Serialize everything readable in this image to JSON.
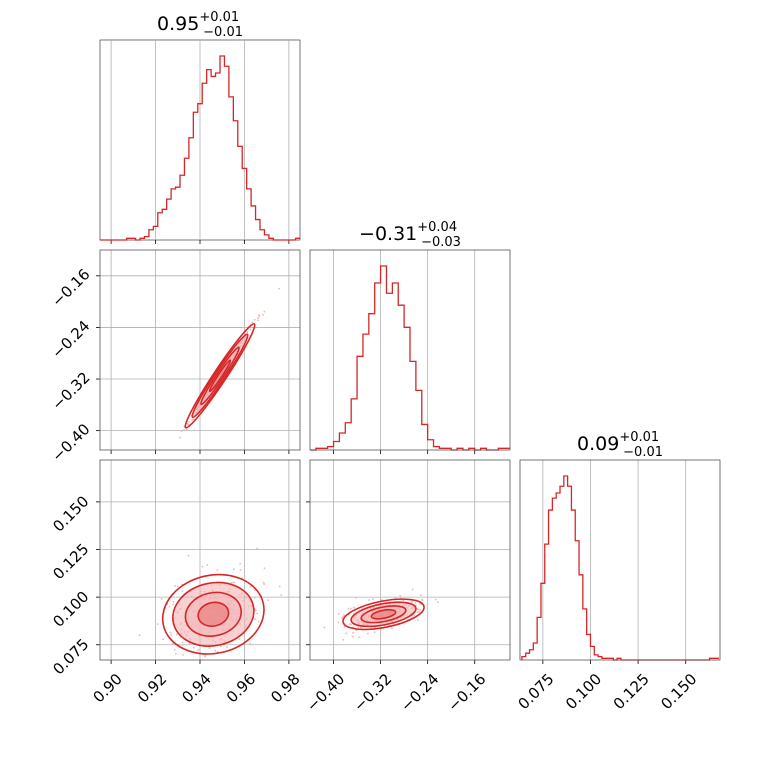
{
  "figure": {
    "color": "#d62728",
    "fill_light": "#f4b4b5",
    "fill_dark": "#e87474"
  },
  "titles": [
    {
      "value": "0.95",
      "plus": "+0.01",
      "minus": "−0.01"
    },
    {
      "value": "−0.31",
      "plus": "+0.04",
      "minus": "−0.03"
    },
    {
      "value": "0.09",
      "plus": "+0.01",
      "minus": "−0.01"
    }
  ],
  "chart_data": [
    {
      "type": "histogram",
      "panel": "param-1-marginal",
      "xlim": [
        0.895,
        0.985
      ],
      "bins": [
        0.896,
        0.898,
        0.9,
        0.902,
        0.904,
        0.906,
        0.908,
        0.91,
        0.912,
        0.914,
        0.916,
        0.918,
        0.92,
        0.922,
        0.924,
        0.926,
        0.928,
        0.93,
        0.932,
        0.934,
        0.936,
        0.938,
        0.94,
        0.942,
        0.944,
        0.946,
        0.948,
        0.95,
        0.952,
        0.954,
        0.956,
        0.958,
        0.96,
        0.962,
        0.964,
        0.966,
        0.968,
        0.97,
        0.972,
        0.974,
        0.976,
        0.978,
        0.98,
        0.982,
        0.984
      ],
      "counts": [
        0,
        0,
        0,
        0,
        0,
        0,
        1,
        1,
        0,
        1,
        2,
        6,
        8,
        16,
        18,
        24,
        30,
        31,
        38,
        48,
        60,
        75,
        80,
        92,
        100,
        96,
        98,
        108,
        102,
        84,
        70,
        55,
        42,
        30,
        20,
        12,
        6,
        3,
        1,
        0,
        0,
        0,
        0,
        0,
        1
      ]
    },
    {
      "type": "histogram",
      "panel": "param-2-marginal",
      "xlim": [
        -0.44,
        -0.1
      ],
      "bins": [
        -0.435,
        -0.425,
        -0.415,
        -0.405,
        -0.395,
        -0.385,
        -0.375,
        -0.365,
        -0.355,
        -0.345,
        -0.335,
        -0.325,
        -0.315,
        -0.305,
        -0.295,
        -0.285,
        -0.275,
        -0.265,
        -0.255,
        -0.245,
        -0.235,
        -0.225,
        -0.215,
        -0.205,
        -0.195,
        -0.185,
        -0.175,
        -0.165,
        -0.155,
        -0.145,
        -0.135,
        -0.125,
        -0.115,
        -0.105
      ],
      "counts": [
        0,
        1,
        1,
        2,
        5,
        10,
        16,
        30,
        55,
        68,
        80,
        98,
        108,
        92,
        98,
        85,
        72,
        52,
        35,
        15,
        6,
        2,
        1,
        1,
        0,
        1,
        0,
        1,
        0,
        1,
        0,
        0,
        1,
        1
      ]
    },
    {
      "type": "histogram",
      "panel": "param-3-marginal",
      "xlim": [
        0.063,
        0.168
      ],
      "bins": [
        0.065,
        0.067,
        0.069,
        0.071,
        0.073,
        0.075,
        0.077,
        0.079,
        0.081,
        0.083,
        0.085,
        0.087,
        0.089,
        0.091,
        0.093,
        0.095,
        0.097,
        0.099,
        0.101,
        0.103,
        0.105,
        0.107,
        0.109,
        0.111,
        0.113,
        0.115,
        0.117,
        0.119,
        0.121,
        0.123,
        0.125,
        0.13,
        0.135,
        0.14,
        0.145,
        0.15,
        0.155,
        0.16,
        0.165
      ],
      "counts": [
        2,
        4,
        6,
        10,
        25,
        45,
        68,
        88,
        95,
        98,
        102,
        108,
        102,
        88,
        70,
        50,
        30,
        15,
        8,
        3,
        2,
        1,
        1,
        1,
        0,
        1,
        0,
        0,
        0,
        0,
        0,
        0,
        0,
        0,
        0,
        0,
        0,
        0,
        1
      ]
    },
    {
      "type": "contour",
      "panel": "param-1-vs-param-2",
      "xlim": [
        0.895,
        0.985
      ],
      "ylim": [
        -0.43,
        -0.12
      ],
      "center": [
        0.949,
        -0.315
      ],
      "slope": 5.2,
      "sigma_major": 0.014,
      "sigma_minor": 0.002,
      "levels_sigma": [
        0.6,
        1.1,
        1.6,
        2.0
      ]
    },
    {
      "type": "contour",
      "panel": "param-1-vs-param-3",
      "xlim": [
        0.895,
        0.985
      ],
      "ylim": [
        0.067,
        0.172
      ],
      "center": [
        0.946,
        0.091
      ],
      "slope": 0.25,
      "sigma_major": 0.0115,
      "sigma_minor": 0.0055,
      "levels_sigma": [
        0.6,
        1.1,
        1.6,
        2.0
      ]
    },
    {
      "type": "contour",
      "panel": "param-2-vs-param-3",
      "xlim": [
        -0.44,
        -0.1
      ],
      "ylim": [
        0.067,
        0.172
      ],
      "center": [
        -0.315,
        0.091
      ],
      "slope": 0.06,
      "sigma_major": 0.035,
      "sigma_minor": 0.007,
      "levels_sigma": [
        0.6,
        1.1,
        1.6,
        2.0
      ]
    }
  ],
  "axes": {
    "p1": {
      "ticks": [
        0.9,
        0.92,
        0.94,
        0.96,
        0.98
      ],
      "labels": [
        "0.90",
        "0.92",
        "0.94",
        "0.96",
        "0.98"
      ]
    },
    "p2": {
      "ticks": [
        -0.4,
        -0.32,
        -0.24,
        -0.16
      ],
      "labels": [
        "−0.40",
        "−0.32",
        "−0.24",
        "−0.16"
      ]
    },
    "p3": {
      "ticks": [
        0.075,
        0.1,
        0.125,
        0.15
      ],
      "labels": [
        "0.075",
        "0.100",
        "0.125",
        "0.150"
      ]
    }
  }
}
